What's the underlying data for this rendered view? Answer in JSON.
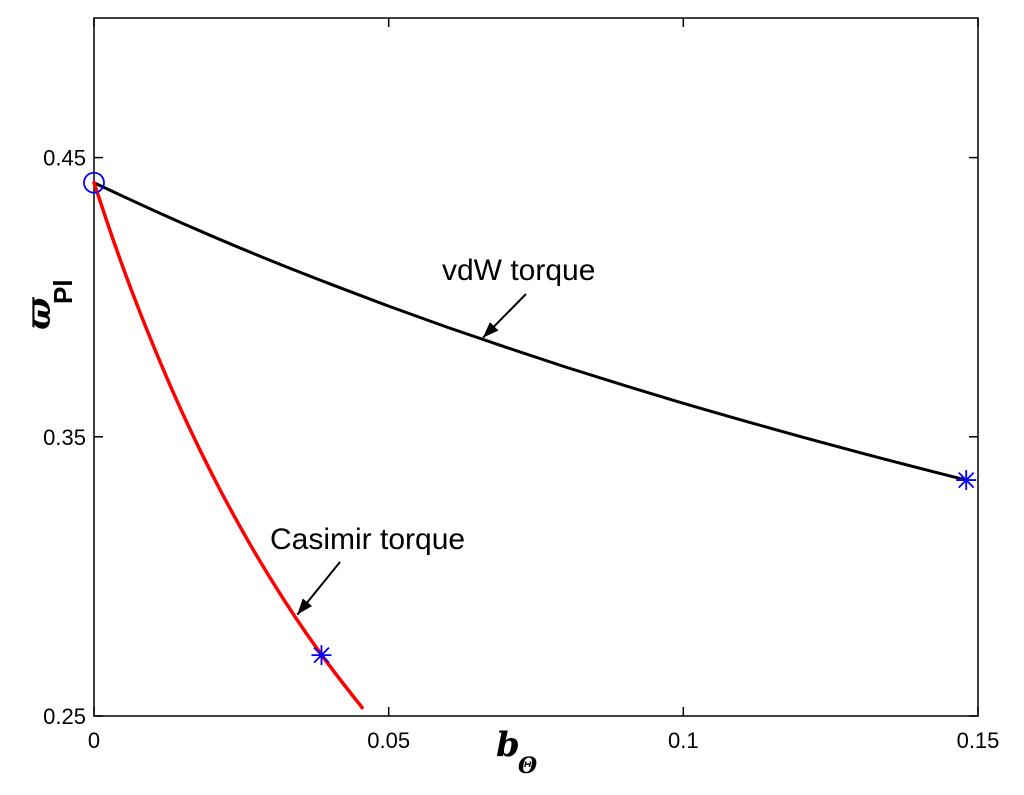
{
  "chart_data": {
    "type": "line",
    "title": "",
    "xlabel": {
      "main": "b",
      "subscript": "Θ"
    },
    "ylabel": {
      "main": "ϖ",
      "subscript": "Pl"
    },
    "xlim": [
      0,
      0.15
    ],
    "ylim": [
      0.25,
      0.5
    ],
    "xticks": [
      {
        "value": 0,
        "label": "0"
      },
      {
        "value": 0.05,
        "label": "0.05"
      },
      {
        "value": 0.1,
        "label": "0.1"
      },
      {
        "value": 0.15,
        "label": "0.15"
      }
    ],
    "yticks": [
      {
        "value": 0.25,
        "label": "0.25"
      },
      {
        "value": 0.35,
        "label": "0.35"
      },
      {
        "value": 0.45,
        "label": "0.45"
      }
    ],
    "grid": false,
    "series": [
      {
        "id": "vdw",
        "color": "#000000",
        "x": [
          0,
          0.01,
          0.02,
          0.03,
          0.04,
          0.05,
          0.06,
          0.07,
          0.08,
          0.09,
          0.1,
          0.11,
          0.12,
          0.13,
          0.14,
          0.148
        ],
        "y": [
          0.441,
          0.4312,
          0.4219,
          0.4131,
          0.4048,
          0.3968,
          0.3892,
          0.382,
          0.375,
          0.3684,
          0.362,
          0.3559,
          0.35,
          0.3443,
          0.3388,
          0.3345
        ]
      },
      {
        "id": "casimir",
        "color": "#ff0000",
        "x": [
          0,
          0.003,
          0.006,
          0.009,
          0.012,
          0.015,
          0.018,
          0.021,
          0.024,
          0.027,
          0.03,
          0.033,
          0.036,
          0.039,
          0.042,
          0.0455
        ],
        "y": [
          0.441,
          0.4221,
          0.4045,
          0.3882,
          0.3729,
          0.3586,
          0.3452,
          0.3326,
          0.3208,
          0.3096,
          0.2991,
          0.2891,
          0.2797,
          0.2708,
          0.2624,
          0.253
        ]
      }
    ],
    "markers": [
      {
        "id": "origin-circle",
        "shape": "circle",
        "color": "#0000ff",
        "x": 0,
        "y": 0.441
      },
      {
        "id": "vdw-end-star",
        "shape": "star",
        "color": "#0000ff",
        "x": 0.148,
        "y": 0.3345
      },
      {
        "id": "casimir-star",
        "shape": "star",
        "color": "#0000ff",
        "x": 0.0386,
        "y": 0.2718
      }
    ],
    "annotations": [
      {
        "id": "vdw",
        "text": "vdW torque",
        "arrow_to": {
          "x": 0.066,
          "y": 0.3855
        }
      },
      {
        "id": "casimir",
        "text": "Casimir torque",
        "arrow_to": {
          "x": 0.0345,
          "y": 0.2863
        }
      }
    ]
  }
}
